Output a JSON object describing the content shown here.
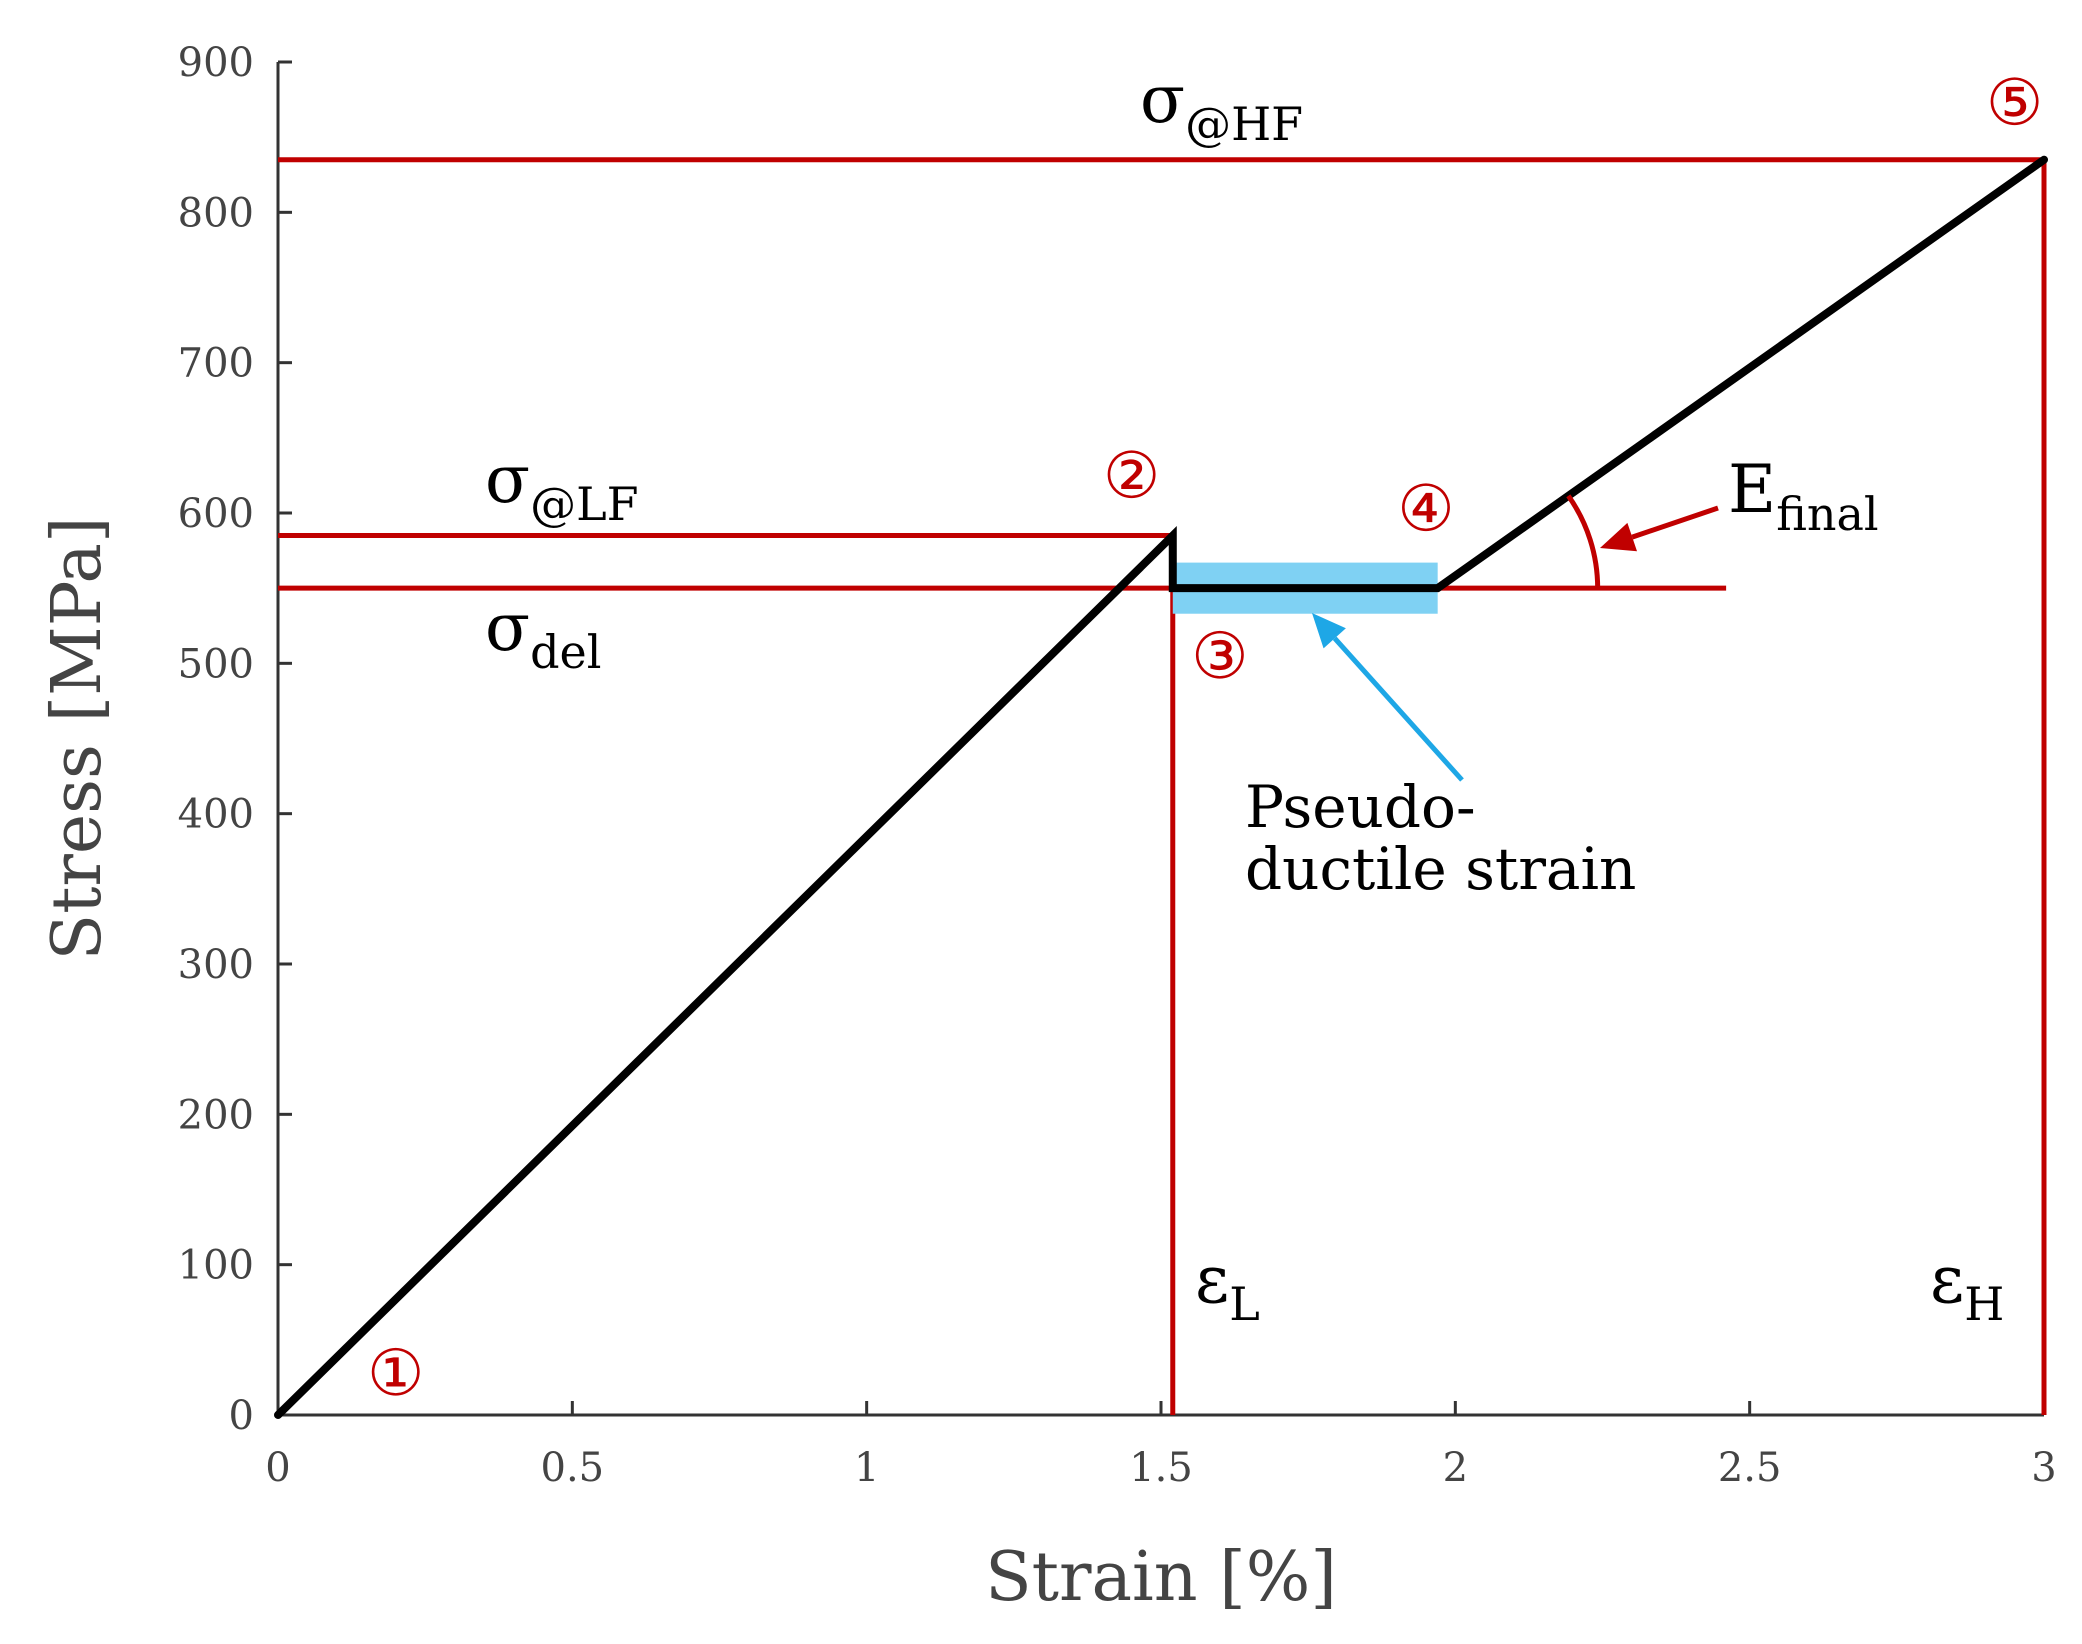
{
  "chart_data": {
    "type": "line",
    "xlabel": "Strain [%]",
    "ylabel": "Stress [MPa]",
    "xlim": [
      0,
      3
    ],
    "ylim": [
      0,
      900
    ],
    "x_ticks": [
      "0",
      "0.5",
      "1",
      "1.5",
      "2",
      "2.5",
      "3"
    ],
    "y_ticks": [
      "0",
      "100",
      "200",
      "300",
      "400",
      "500",
      "600",
      "700",
      "800",
      "900"
    ],
    "grid": false,
    "series": [
      {
        "color": "#000000",
        "x": [
          0,
          1.52,
          1.52,
          1.97,
          3.0
        ],
        "y": [
          0,
          585,
          550,
          550,
          835
        ]
      }
    ],
    "reference_lines": {
      "color": "#c00000",
      "sigma_hf": 835,
      "sigma_lf": 585,
      "sigma_del": 550,
      "sigma_del_line_end_x": 2.46,
      "eps_l": 1.52,
      "eps_h": 3.0
    },
    "pseudo_ductile_band": {
      "color": "#7fd1f3",
      "x_start": 1.52,
      "x_end": 1.97,
      "y_low": 533,
      "y_high": 567
    },
    "annotations": {
      "sigma_hf": {
        "symbol": "σ",
        "sub": "@HF"
      },
      "sigma_lf": {
        "symbol": "σ",
        "sub": "@LF"
      },
      "sigma_del": {
        "symbol": "σ",
        "sub": "del"
      },
      "eps_l": {
        "symbol": "ε",
        "sub": "L"
      },
      "eps_h": {
        "symbol": "ε",
        "sub": "H"
      },
      "e_final": {
        "symbol": "E",
        "sub": "final"
      },
      "pseudo_line1": "Pseudo-",
      "pseudo_line2": "ductile strain",
      "arrow_color": "#1ea7e6"
    },
    "markers": [
      {
        "label": "①",
        "x": 0.2,
        "y": 28
      },
      {
        "label": "②",
        "x": 1.45,
        "y": 625
      },
      {
        "label": "③",
        "x": 1.6,
        "y": 505
      },
      {
        "label": "④",
        "x": 1.95,
        "y": 603
      },
      {
        "label": "⑤",
        "x": 2.95,
        "y": 873
      }
    ]
  }
}
